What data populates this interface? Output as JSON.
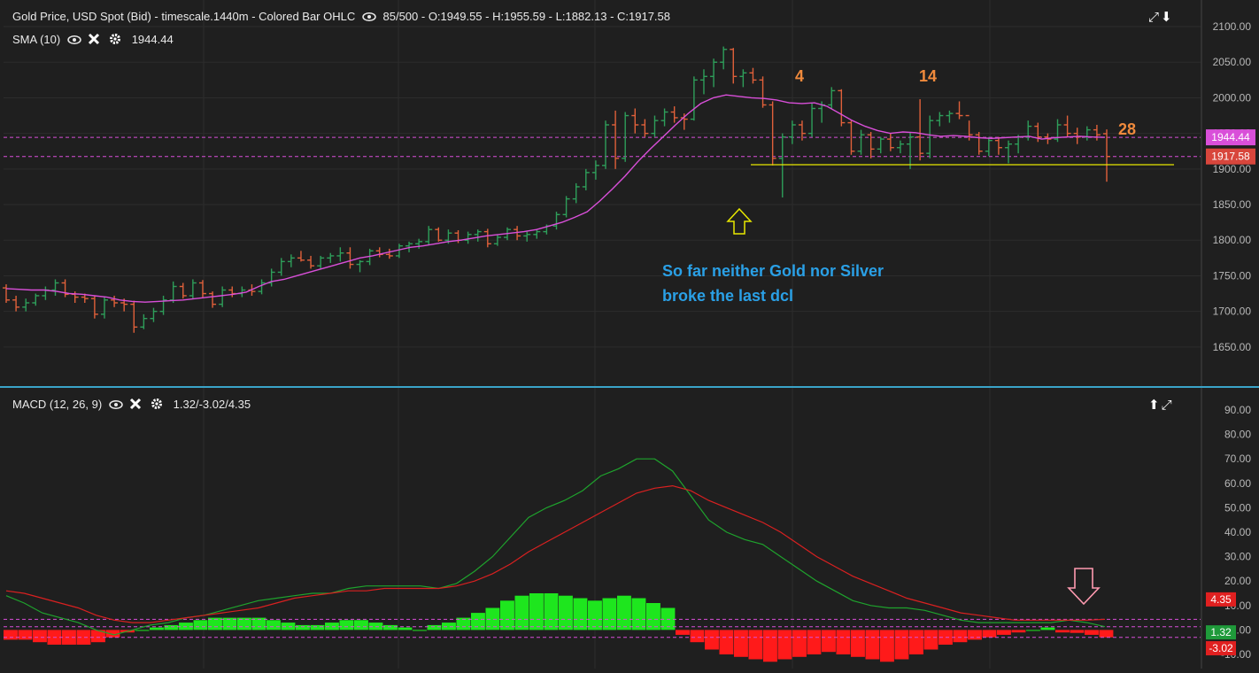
{
  "price_legend": "Gold Price, USD Spot (Bid) - timescale.1440m - Colored Bar OHLC",
  "price_stats": "85/500 - O:1949.55 - H:1955.59 - L:1882.13 - C:1917.58",
  "sma_label": "SMA (10)",
  "sma_value": "1944.44",
  "macd_label": "MACD (12, 26, 9)",
  "macd_values": "1.32/-3.02/4.35",
  "comment_line1": "So far neither Gold nor Silver",
  "comment_line2": "broke the last dcl",
  "colors": {
    "background": "#1f1f1f",
    "up_bar": "#2e9e5a",
    "down_bar": "#e0603a",
    "sma": "#d94fd9",
    "macd_line": "#1fa32d",
    "signal_line": "#d92020",
    "hist_pos": "#1ee61e",
    "hist_neg": "#ff1a1a",
    "divider": "#3aa3c8",
    "support_line": "#e8e800",
    "annotation": "#f08a3c",
    "comment": "#2aa0e6"
  },
  "icons": [
    "eye-icon",
    "close-icon",
    "gear-icon",
    "expand-icon",
    "arrow-down-icon",
    "arrow-up-icon",
    "up-arrow-marker",
    "down-arrow-marker"
  ],
  "chart_data": [
    {
      "type": "ohlc",
      "title": "Gold Price, USD Spot (Bid)",
      "ylim": [
        1610,
        2110
      ],
      "yticks": [
        1650,
        1700,
        1750,
        1800,
        1850,
        1900,
        1950,
        2000,
        2050,
        2100
      ],
      "ytick_labels": [
        "1650.00",
        "1700.00",
        "1750.00",
        "1800.00",
        "1850.00",
        "1900.00",
        "1950.00",
        "2000.00",
        "2050.00",
        "2100.00"
      ],
      "bars": [
        [
          1733,
          1738,
          1712,
          1716
        ],
        [
          1716,
          1722,
          1700,
          1706
        ],
        [
          1706,
          1718,
          1700,
          1712
        ],
        [
          1712,
          1725,
          1708,
          1722
        ],
        [
          1722,
          1735,
          1716,
          1730
        ],
        [
          1730,
          1745,
          1722,
          1740
        ],
        [
          1740,
          1745,
          1720,
          1724
        ],
        [
          1724,
          1728,
          1712,
          1720
        ],
        [
          1720,
          1725,
          1712,
          1718
        ],
        [
          1718,
          1722,
          1690,
          1696
        ],
        [
          1696,
          1720,
          1690,
          1716
        ],
        [
          1716,
          1722,
          1706,
          1712
        ],
        [
          1712,
          1718,
          1700,
          1710
        ],
        [
          1710,
          1715,
          1670,
          1678
        ],
        [
          1678,
          1696,
          1675,
          1690
        ],
        [
          1690,
          1705,
          1685,
          1700
        ],
        [
          1700,
          1722,
          1695,
          1716
        ],
        [
          1716,
          1742,
          1712,
          1735
        ],
        [
          1735,
          1740,
          1718,
          1722
        ],
        [
          1722,
          1745,
          1718,
          1740
        ],
        [
          1740,
          1744,
          1720,
          1725
        ],
        [
          1725,
          1728,
          1705,
          1710
        ],
        [
          1710,
          1735,
          1706,
          1730
        ],
        [
          1730,
          1735,
          1720,
          1725
        ],
        [
          1725,
          1735,
          1720,
          1730
        ],
        [
          1730,
          1738,
          1722,
          1728
        ],
        [
          1728,
          1745,
          1724,
          1740
        ],
        [
          1740,
          1760,
          1735,
          1755
        ],
        [
          1755,
          1775,
          1750,
          1770
        ],
        [
          1770,
          1780,
          1762,
          1775
        ],
        [
          1775,
          1785,
          1770,
          1772
        ],
        [
          1772,
          1778,
          1760,
          1764
        ],
        [
          1764,
          1778,
          1760,
          1775
        ],
        [
          1775,
          1782,
          1768,
          1778
        ],
        [
          1778,
          1790,
          1770,
          1782
        ],
        [
          1782,
          1790,
          1760,
          1766
        ],
        [
          1766,
          1772,
          1755,
          1770
        ],
        [
          1770,
          1788,
          1765,
          1785
        ],
        [
          1785,
          1790,
          1776,
          1780
        ],
        [
          1780,
          1788,
          1774,
          1778
        ],
        [
          1778,
          1795,
          1775,
          1792
        ],
        [
          1792,
          1798,
          1783,
          1795
        ],
        [
          1795,
          1802,
          1788,
          1798
        ],
        [
          1798,
          1820,
          1794,
          1815
        ],
        [
          1815,
          1818,
          1798,
          1800
        ],
        [
          1800,
          1815,
          1795,
          1810
        ],
        [
          1810,
          1814,
          1796,
          1800
        ],
        [
          1800,
          1812,
          1795,
          1808
        ],
        [
          1808,
          1815,
          1798,
          1812
        ],
        [
          1812,
          1816,
          1790,
          1795
        ],
        [
          1795,
          1808,
          1792,
          1804
        ],
        [
          1804,
          1818,
          1800,
          1815
        ],
        [
          1815,
          1820,
          1800,
          1806
        ],
        [
          1806,
          1812,
          1798,
          1808
        ],
        [
          1808,
          1815,
          1802,
          1812
        ],
        [
          1812,
          1822,
          1808,
          1820
        ],
        [
          1820,
          1840,
          1815,
          1836
        ],
        [
          1836,
          1862,
          1832,
          1858
        ],
        [
          1858,
          1880,
          1852,
          1875
        ],
        [
          1875,
          1900,
          1870,
          1895
        ],
        [
          1895,
          1912,
          1885,
          1905
        ],
        [
          1905,
          1968,
          1900,
          1962
        ],
        [
          1962,
          1982,
          1900,
          1915
        ],
        [
          1915,
          1980,
          1910,
          1975
        ],
        [
          1975,
          1985,
          1950,
          1962
        ],
        [
          1962,
          1970,
          1945,
          1950
        ],
        [
          1950,
          1975,
          1945,
          1968
        ],
        [
          1968,
          1985,
          1960,
          1980
        ],
        [
          1980,
          1988,
          1965,
          1972
        ],
        [
          1972,
          1978,
          1955,
          1970
        ],
        [
          1970,
          2030,
          1968,
          2025
        ],
        [
          2025,
          2040,
          2005,
          2030
        ],
        [
          2030,
          2055,
          2015,
          2050
        ],
        [
          2050,
          2072,
          2040,
          2068
        ],
        [
          2068,
          2070,
          2020,
          2030
        ],
        [
          2030,
          2040,
          2015,
          2035
        ],
        [
          2035,
          2042,
          2020,
          2025
        ],
        [
          2025,
          2030,
          1986,
          1990
        ],
        [
          1990,
          1995,
          1905,
          1915
        ],
        [
          1915,
          1950,
          1860,
          1945
        ],
        [
          1945,
          1968,
          1935,
          1962
        ],
        [
          1962,
          1968,
          1940,
          1950
        ],
        [
          1950,
          1992,
          1945,
          1985
        ],
        [
          1985,
          1995,
          1965,
          1990
        ],
        [
          1990,
          2015,
          1984,
          2010
        ],
        [
          2010,
          2012,
          1960,
          1965
        ],
        [
          1965,
          1968,
          1920,
          1925
        ],
        [
          1925,
          1955,
          1920,
          1948
        ],
        [
          1948,
          1952,
          1915,
          1928
        ],
        [
          1928,
          1945,
          1922,
          1942
        ],
        [
          1942,
          1950,
          1925,
          1930
        ],
        [
          1930,
          1940,
          1922,
          1935
        ],
        [
          1935,
          1952,
          1900,
          1945
        ],
        [
          1945,
          1998,
          1912,
          1922
        ],
        [
          1922,
          1975,
          1915,
          1968
        ],
        [
          1968,
          1980,
          1960,
          1975
        ],
        [
          1975,
          1982,
          1965,
          1978
        ],
        [
          1978,
          1995,
          1970,
          1975
        ],
        [
          1975,
          1968,
          1940,
          1948
        ],
        [
          1948,
          1952,
          1920,
          1925
        ],
        [
          1925,
          1945,
          1918,
          1940
        ],
        [
          1940,
          1945,
          1920,
          1930
        ],
        [
          1930,
          1940,
          1908,
          1935
        ],
        [
          1935,
          1948,
          1922,
          1945
        ],
        [
          1945,
          1968,
          1940,
          1960
        ],
        [
          1960,
          1965,
          1938,
          1945
        ],
        [
          1945,
          1950,
          1935,
          1942
        ],
        [
          1942,
          1970,
          1938,
          1962
        ],
        [
          1962,
          1975,
          1945,
          1950
        ],
        [
          1950,
          1958,
          1935,
          1945
        ],
        [
          1945,
          1960,
          1940,
          1955
        ],
        [
          1955,
          1962,
          1940,
          1948
        ],
        [
          1949.55,
          1955.59,
          1882.13,
          1917.58
        ]
      ],
      "sma": [
        1732,
        1731,
        1730,
        1730,
        1728,
        1725,
        1724,
        1722,
        1720,
        1716,
        1714,
        1713,
        1714,
        1715,
        1716,
        1718,
        1720,
        1722,
        1724,
        1727,
        1735,
        1742,
        1745,
        1750,
        1755,
        1760,
        1765,
        1770,
        1775,
        1778,
        1782,
        1786,
        1790,
        1792,
        1795,
        1798,
        1800,
        1803,
        1806,
        1808,
        1810,
        1812,
        1815,
        1820,
        1825,
        1832,
        1840,
        1855,
        1872,
        1890,
        1910,
        1928,
        1945,
        1962,
        1978,
        1992,
        2000,
        2004,
        2002,
        2000,
        1999,
        1997,
        1993,
        1992,
        1993,
        1988,
        1978,
        1968,
        1960,
        1954,
        1950,
        1952,
        1951,
        1948,
        1946,
        1947,
        1946,
        1944,
        1943,
        1944,
        1945,
        1946,
        1942,
        1944,
        1945,
        1946,
        1945,
        1944.44
      ],
      "current_price": 1917.58,
      "sma_current": 1944.44,
      "dashed_levels": [
        1944.44,
        1917.58
      ],
      "support_level": 1906,
      "annotations": [
        "4",
        "14",
        "28"
      ]
    },
    {
      "type": "line",
      "title": "MACD (12, 26, 9)",
      "ylim": [
        -14,
        94
      ],
      "yticks": [
        -10,
        0,
        10,
        20,
        30,
        40,
        50,
        60,
        70,
        80,
        90
      ],
      "ytick_labels": [
        "-10.00",
        "0.00",
        "10.00",
        "20.00",
        "30.00",
        "40.00",
        "50.00",
        "60.00",
        "70.00",
        "80.00",
        "90.00"
      ],
      "series": [
        {
          "name": "MACD",
          "values": [
            14,
            11,
            7,
            5,
            3,
            0,
            -2,
            0,
            2,
            3,
            5,
            6,
            8,
            10,
            12,
            13,
            14,
            15,
            15,
            17,
            18,
            18,
            18,
            18,
            17,
            19,
            24,
            30,
            38,
            46,
            50,
            53,
            57,
            63,
            66,
            70,
            70,
            65,
            55,
            45,
            40,
            37,
            35,
            30,
            25,
            20,
            16,
            12,
            10,
            9,
            9,
            8,
            6,
            4,
            3,
            3,
            3,
            3,
            3,
            4,
            3,
            1.32
          ]
        },
        {
          "name": "Signal",
          "values": [
            16,
            15,
            13,
            11,
            9,
            6,
            4,
            3,
            3,
            4,
            5,
            6,
            7,
            8,
            9,
            11,
            13,
            14,
            15,
            16,
            16,
            17,
            17,
            17,
            17,
            18,
            20,
            23,
            27,
            32,
            36,
            40,
            44,
            48,
            52,
            56,
            58,
            59,
            57,
            53,
            50,
            47,
            44,
            40,
            35,
            30,
            26,
            22,
            19,
            16,
            13,
            11,
            9,
            7,
            6,
            5,
            4,
            4,
            4,
            4,
            4,
            4.35
          ]
        }
      ],
      "histogram": [
        -4,
        -4,
        -5,
        -6,
        -6,
        -6,
        -5,
        -3,
        -1,
        0,
        1,
        2,
        3,
        4,
        5,
        5,
        5,
        5,
        4,
        3,
        2,
        2,
        3,
        4,
        4,
        3,
        2,
        1,
        0,
        2,
        3,
        5,
        7,
        9,
        12,
        14,
        15,
        15,
        14,
        13,
        12,
        13,
        14,
        13,
        11,
        9,
        -2,
        -5,
        -8,
        -10,
        -11,
        -12,
        -13,
        -12,
        -11,
        -10,
        -9,
        -10,
        -11,
        -12,
        -13,
        -12,
        -10,
        -8,
        -6,
        -5,
        -4,
        -3,
        -2,
        -1,
        0,
        1,
        -1,
        -1.2,
        -2.0,
        -3.02
      ],
      "dashed_levels": [
        4.35,
        1.32,
        -3.02
      ]
    }
  ]
}
